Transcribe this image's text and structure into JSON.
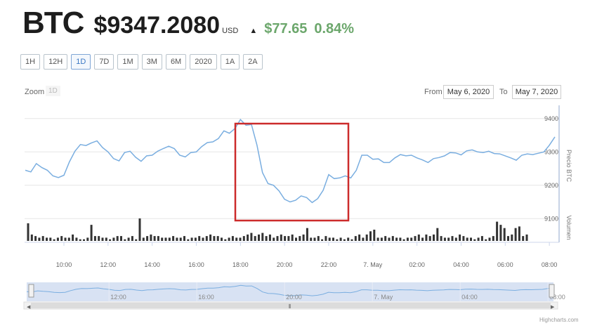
{
  "header": {
    "symbol": "BTC",
    "price": "$9347.2080",
    "currency": "USD",
    "change_arrow": "▲",
    "change": "$77.65",
    "change_pct": "0.84%"
  },
  "ranges": [
    {
      "label": "1H",
      "active": false
    },
    {
      "label": "12H",
      "active": false
    },
    {
      "label": "1D",
      "active": true
    },
    {
      "label": "7D",
      "active": false
    },
    {
      "label": "1M",
      "active": false
    },
    {
      "label": "3M",
      "active": false
    },
    {
      "label": "6M",
      "active": false
    },
    {
      "label": "2020",
      "active": false
    },
    {
      "label": "1A",
      "active": false
    },
    {
      "label": "2A",
      "active": false
    }
  ],
  "zoom": {
    "label": "Zoom",
    "button": "1D"
  },
  "date_range": {
    "from_label": "From",
    "from_value": "May 6, 2020",
    "to_label": "To",
    "to_value": "May 7, 2020"
  },
  "credit": "Highcharts.com",
  "colors": {
    "line": "#7aaee0",
    "volume": "#333333",
    "grid": "#e6e6e6",
    "highlight": "#cc2b2b",
    "navigator_fill": "#d8e2f3"
  },
  "chart_data": {
    "type": "line",
    "xlabel": "",
    "ylabel": "Precio BTC",
    "volume_label": "Volumen",
    "ylim": [
      9050,
      9450
    ],
    "y_ticks": [
      9100,
      9200,
      9300,
      9400
    ],
    "x_range": [
      8.25,
      32.25
    ],
    "x_ticks": [
      {
        "t": 10,
        "label": "10:00"
      },
      {
        "t": 12,
        "label": "12:00"
      },
      {
        "t": 14,
        "label": "14:00"
      },
      {
        "t": 16,
        "label": "16:00"
      },
      {
        "t": 18,
        "label": "18:00"
      },
      {
        "t": 20,
        "label": "20:00"
      },
      {
        "t": 22,
        "label": "22:00"
      },
      {
        "t": 24,
        "label": "7. May"
      },
      {
        "t": 26,
        "label": "02:00"
      },
      {
        "t": 28,
        "label": "04:00"
      },
      {
        "t": 30,
        "label": "06:00"
      },
      {
        "t": 32,
        "label": "08:00"
      }
    ],
    "navigator_ticks": [
      {
        "t": 12,
        "label": "12:00"
      },
      {
        "t": 16,
        "label": "16:00"
      },
      {
        "t": 20,
        "label": "20:00"
      },
      {
        "t": 24,
        "label": "7. May"
      },
      {
        "t": 28,
        "label": "04:00"
      },
      {
        "t": 32,
        "label": "08:00"
      }
    ],
    "series": [
      {
        "points": [
          [
            8.25,
            9245
          ],
          [
            8.5,
            9240
          ],
          [
            8.75,
            9265
          ],
          [
            9.0,
            9253
          ],
          [
            9.25,
            9245
          ],
          [
            9.5,
            9228
          ],
          [
            9.75,
            9223
          ],
          [
            10.0,
            9230
          ],
          [
            10.25,
            9270
          ],
          [
            10.5,
            9302
          ],
          [
            10.75,
            9322
          ],
          [
            11.0,
            9319
          ],
          [
            11.25,
            9327
          ],
          [
            11.5,
            9333
          ],
          [
            11.75,
            9313
          ],
          [
            12.0,
            9300
          ],
          [
            12.25,
            9280
          ],
          [
            12.5,
            9273
          ],
          [
            12.75,
            9298
          ],
          [
            13.0,
            9302
          ],
          [
            13.25,
            9284
          ],
          [
            13.5,
            9272
          ],
          [
            13.75,
            9288
          ],
          [
            14.0,
            9290
          ],
          [
            14.25,
            9302
          ],
          [
            14.5,
            9310
          ],
          [
            14.75,
            9317
          ],
          [
            15.0,
            9310
          ],
          [
            15.25,
            9290
          ],
          [
            15.5,
            9285
          ],
          [
            15.75,
            9298
          ],
          [
            16.0,
            9300
          ],
          [
            16.25,
            9316
          ],
          [
            16.5,
            9328
          ],
          [
            16.75,
            9330
          ],
          [
            17.0,
            9340
          ],
          [
            17.25,
            9363
          ],
          [
            17.5,
            9356
          ],
          [
            17.75,
            9370
          ],
          [
            18.0,
            9397
          ],
          [
            18.25,
            9380
          ],
          [
            18.5,
            9382
          ],
          [
            18.75,
            9320
          ],
          [
            19.0,
            9238
          ],
          [
            19.25,
            9205
          ],
          [
            19.5,
            9200
          ],
          [
            19.75,
            9183
          ],
          [
            20.0,
            9158
          ],
          [
            20.25,
            9150
          ],
          [
            20.5,
            9155
          ],
          [
            20.75,
            9168
          ],
          [
            21.0,
            9163
          ],
          [
            21.25,
            9148
          ],
          [
            21.5,
            9160
          ],
          [
            21.75,
            9185
          ],
          [
            22.0,
            9232
          ],
          [
            22.25,
            9220
          ],
          [
            22.5,
            9222
          ],
          [
            22.75,
            9228
          ],
          [
            23.0,
            9222
          ],
          [
            23.25,
            9245
          ],
          [
            23.5,
            9290
          ],
          [
            23.75,
            9290
          ],
          [
            24.0,
            9278
          ],
          [
            24.25,
            9279
          ],
          [
            24.5,
            9268
          ],
          [
            24.75,
            9268
          ],
          [
            25.0,
            9282
          ],
          [
            25.25,
            9292
          ],
          [
            25.5,
            9288
          ],
          [
            25.75,
            9290
          ],
          [
            26.0,
            9282
          ],
          [
            26.25,
            9276
          ],
          [
            26.5,
            9268
          ],
          [
            26.75,
            9280
          ],
          [
            27.0,
            9283
          ],
          [
            27.25,
            9288
          ],
          [
            27.5,
            9298
          ],
          [
            27.75,
            9297
          ],
          [
            28.0,
            9291
          ],
          [
            28.25,
            9303
          ],
          [
            28.5,
            9306
          ],
          [
            28.75,
            9300
          ],
          [
            29.0,
            9298
          ],
          [
            29.25,
            9302
          ],
          [
            29.5,
            9295
          ],
          [
            29.75,
            9294
          ],
          [
            30.0,
            9288
          ],
          [
            30.25,
            9282
          ],
          [
            30.5,
            9275
          ],
          [
            30.75,
            9290
          ],
          [
            31.0,
            9294
          ],
          [
            31.25,
            9292
          ],
          [
            31.5,
            9296
          ],
          [
            31.75,
            9300
          ],
          [
            32.0,
            9320
          ],
          [
            32.25,
            9345
          ]
        ]
      }
    ],
    "volume": [
      11,
      4,
      3,
      2,
      3,
      2,
      2,
      1,
      2,
      3,
      2,
      2,
      4,
      2,
      1,
      1,
      2,
      10,
      3,
      3,
      2,
      2,
      1,
      2,
      3,
      3,
      1,
      2,
      3,
      1,
      14,
      2,
      3,
      4,
      3,
      3,
      2,
      2,
      2,
      3,
      2,
      2,
      3,
      1,
      2,
      2,
      3,
      2,
      3,
      4,
      3,
      3,
      2,
      1,
      2,
      3,
      2,
      2,
      3,
      4,
      5,
      3,
      4,
      5,
      3,
      4,
      2,
      3,
      4,
      3,
      3,
      4,
      2,
      3,
      4,
      8,
      2,
      2,
      3,
      1,
      3,
      2,
      2,
      1,
      2,
      1,
      2,
      1,
      3,
      4,
      2,
      4,
      6,
      7,
      2,
      2,
      3,
      2,
      3,
      2,
      2,
      1,
      2,
      2,
      3,
      4,
      2,
      4,
      3,
      4,
      8,
      3,
      2,
      2,
      3,
      2,
      4,
      3,
      2,
      2,
      1,
      2,
      3,
      1,
      2,
      3,
      12,
      10,
      8,
      3,
      4,
      8,
      9,
      3,
      4
    ]
  }
}
